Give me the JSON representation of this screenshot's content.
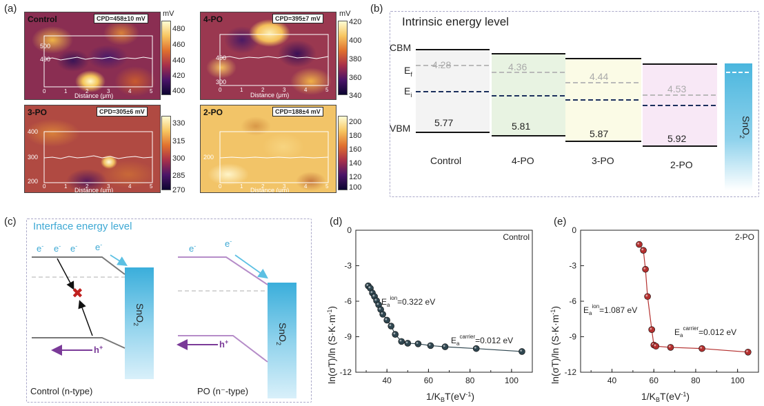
{
  "panel_a": {
    "letter": "(a)",
    "unit": "mV",
    "axis_label": "Distance (μm)",
    "x_ticks": [
      "0",
      "1",
      "2",
      "3",
      "4",
      "5"
    ],
    "maps": [
      {
        "title": "Control",
        "cpd": "CPD=458±10 mV",
        "y_ticks": [
          "500",
          "400"
        ],
        "cbar": [
          "480",
          "460",
          "440",
          "420",
          "400"
        ]
      },
      {
        "title": "4-PO",
        "cpd": "CPD=395±7 mV",
        "y_ticks": [
          "400",
          "300"
        ],
        "cbar": [
          "420",
          "400",
          "380",
          "360",
          "340"
        ]
      },
      {
        "title": "3-PO",
        "cpd": "CPD=305±6 mV",
        "y_ticks": [
          "400",
          "300",
          "200"
        ],
        "cbar": [
          "330",
          "315",
          "300",
          "285",
          "270"
        ]
      },
      {
        "title": "2-PO",
        "cpd": "CPD=188±4 mV",
        "y_ticks": [
          "200"
        ],
        "cbar": [
          "200",
          "180",
          "160",
          "140",
          "120",
          "100"
        ]
      }
    ]
  },
  "panel_b": {
    "letter": "(b)",
    "title": "Intrinsic energy level",
    "cbm_label": "CBM",
    "ef_label": "E",
    "ef_sub": "f",
    "ei_label": "E",
    "ei_sub": "i",
    "vbm_label": "VBM",
    "samples": [
      {
        "name": "Control",
        "ef": "4.28",
        "vbm": "5.77"
      },
      {
        "name": "4-PO",
        "ef": "4.36",
        "vbm": "5.81"
      },
      {
        "name": "3-PO",
        "ef": "4.44",
        "vbm": "5.87"
      },
      {
        "name": "2-PO",
        "ef": "4.53",
        "vbm": "5.92"
      }
    ],
    "sno2": "SnO",
    "sno2_sub": "2"
  },
  "panel_c": {
    "letter": "(c)",
    "title": "Interface energy level",
    "electron": "e",
    "hole": "h",
    "sno2": "SnO",
    "sno2_sub": "2",
    "left_caption": "Control (n-type)",
    "right_caption": "PO (n⁻-type)"
  },
  "chart_data": [
    {
      "panel": "(d)",
      "type": "scatter",
      "label": "Control",
      "xlabel": "1/K_BT(eV⁻¹)",
      "ylabel": "ln(σT)/ln (S·K·m⁻¹)",
      "xlim": [
        25,
        110
      ],
      "ylim": [
        -12,
        0
      ],
      "x_ticks": [
        "40",
        "60",
        "80",
        "100"
      ],
      "y_ticks": [
        "0",
        "-3",
        "-6",
        "-9",
        "-12"
      ],
      "x": [
        31,
        32,
        33,
        34,
        35,
        36,
        37,
        38,
        40,
        42,
        44,
        47,
        50,
        55,
        61,
        68,
        83,
        105
      ],
      "y": [
        -4.7,
        -4.9,
        -5.3,
        -5.6,
        -5.95,
        -6.3,
        -6.7,
        -7.1,
        -7.6,
        -8.1,
        -8.8,
        -9.4,
        -9.55,
        -9.6,
        -9.75,
        -9.85,
        -10.0,
        -10.25
      ],
      "annotations": [
        "E_a^ion=0.322 eV",
        "E_a^carrier=0.012 eV"
      ],
      "color": "#2f4650"
    },
    {
      "panel": "(e)",
      "type": "scatter",
      "label": "2-PO",
      "xlabel": "1/K_BT(eV⁻¹)",
      "ylabel": "ln(σT)/ln (S·K·m⁻¹)",
      "xlim": [
        25,
        110
      ],
      "ylim": [
        -12,
        0
      ],
      "x_ticks": [
        "40",
        "60",
        "80",
        "100"
      ],
      "y_ticks": [
        "0",
        "-3",
        "-6",
        "-9",
        "-12"
      ],
      "x": [
        53,
        55,
        56,
        57,
        59,
        60,
        61,
        68,
        83,
        105
      ],
      "y": [
        -1.2,
        -1.7,
        -3.3,
        -5.6,
        -8.4,
        -9.7,
        -9.8,
        -9.9,
        -10.0,
        -10.3
      ],
      "annotations": [
        "E_a^ion=1.087 eV",
        "E_a^carrier=0.012 eV"
      ],
      "color": "#b4302f"
    }
  ],
  "panel_d_letter": "(d)",
  "panel_e_letter": "(e)",
  "ea": "E",
  "ea_sub": "a",
  "ion_sup": "ion",
  "carrier_sup": "carrier",
  "ion_d": "=0.322 eV",
  "ion_e": "=1.087 eV",
  "carrier_val": "=0.012 eV"
}
